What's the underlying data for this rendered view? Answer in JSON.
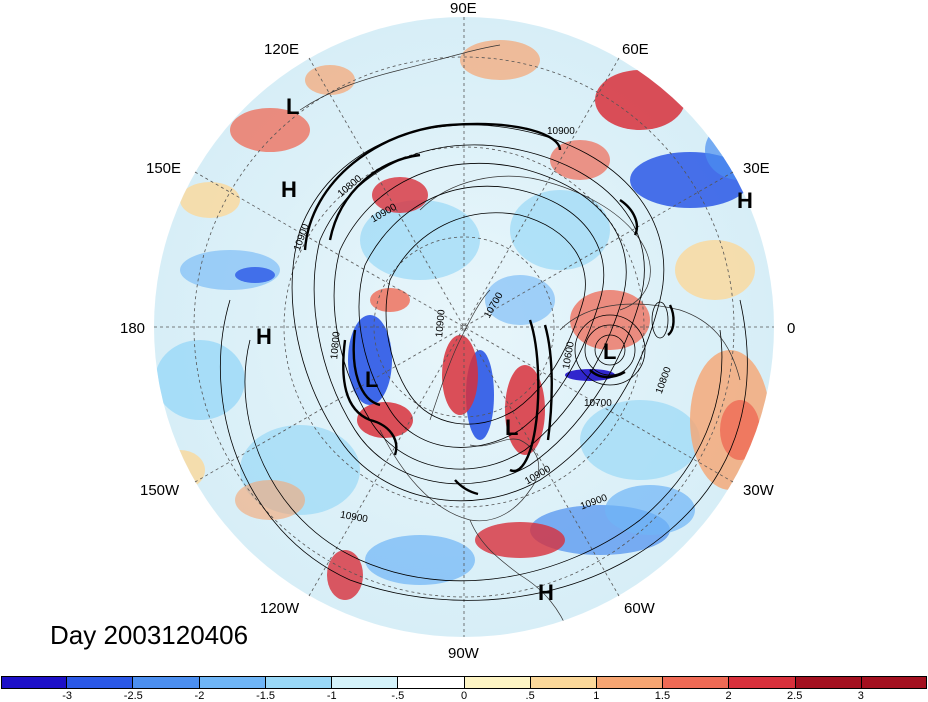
{
  "title": "Day 2003120406",
  "longitude_labels": [
    "90E",
    "60E",
    "120E",
    "30E",
    "150E",
    "180",
    "0",
    "150W",
    "30W",
    "120W",
    "60W",
    "90W"
  ],
  "pressure_systems": [
    "L",
    "H",
    "H",
    "H",
    "H",
    "L",
    "L",
    "L"
  ],
  "contour_labels": [
    "10900",
    "10800",
    "10900",
    "10900",
    "10800",
    "10900",
    "10700",
    "10600",
    "10700",
    "10900",
    "10900",
    "10900",
    "10800"
  ],
  "colorbar": {
    "ticks": [
      "-3",
      "-2.5",
      "-2",
      "-1.5",
      "-1",
      "-.5",
      "0",
      ".5",
      "1",
      "1.5",
      "2",
      "2.5",
      "3"
    ],
    "colors": [
      "#1d10c8",
      "#2b58e6",
      "#4c8ff0",
      "#6fb5f6",
      "#9ad8f7",
      "#d4f2fa",
      "#ffffff",
      "#fdf4c4",
      "#fbd89a",
      "#f6a572",
      "#ef6a55",
      "#d8303b",
      "#a3101f"
    ]
  }
}
